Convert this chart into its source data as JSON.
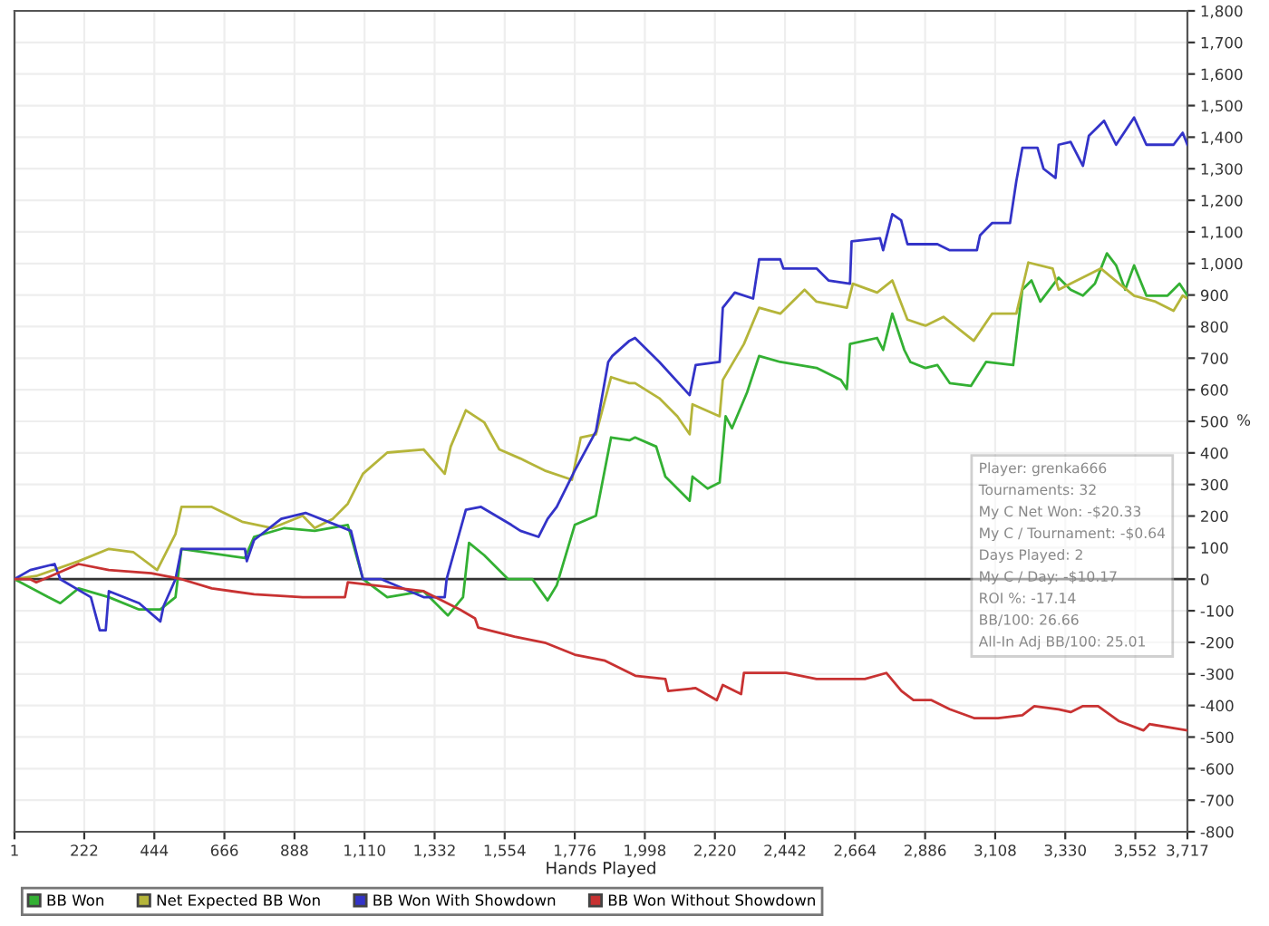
{
  "chart_data": {
    "type": "line",
    "xlabel": "Hands Played",
    "ylabel": "%",
    "xlim": [
      1,
      3717
    ],
    "ylim": [
      -800,
      1800
    ],
    "xticks": [
      1,
      222,
      444,
      666,
      888,
      {
        "value": 1110,
        "label": "1,110"
      },
      {
        "value": 1332,
        "label": "1,332"
      },
      {
        "value": 1554,
        "label": "1,554"
      },
      {
        "value": 1776,
        "label": "1,776"
      },
      {
        "value": 1998,
        "label": "1,998"
      },
      {
        "value": 2220,
        "label": "2,220"
      },
      {
        "value": 2442,
        "label": "2,442"
      },
      {
        "value": 2664,
        "label": "2,664"
      },
      {
        "value": 2886,
        "label": "2,886"
      },
      {
        "value": 3108,
        "label": "3,108"
      },
      {
        "value": 3330,
        "label": "3,330"
      },
      {
        "value": 3552,
        "label": "3,552"
      },
      {
        "value": 3717,
        "label": "3,717"
      }
    ],
    "yticks": [
      -800,
      -700,
      -600,
      -500,
      -400,
      -300,
      -200,
      -100,
      0,
      100,
      200,
      300,
      400,
      500,
      600,
      700,
      800,
      900,
      {
        "value": 1000,
        "label": "1,000"
      },
      {
        "value": 1100,
        "label": "1,100"
      },
      {
        "value": 1200,
        "label": "1,200"
      },
      {
        "value": 1300,
        "label": "1,300"
      },
      {
        "value": 1400,
        "label": "1,400"
      },
      {
        "value": 1500,
        "label": "1,500"
      },
      {
        "value": 1600,
        "label": "1,600"
      },
      {
        "value": 1700,
        "label": "1,700"
      },
      {
        "value": 1800,
        "label": "1,800"
      }
    ],
    "grid": true,
    "legend": "bottom",
    "marker": "none",
    "line_style": "solid",
    "ref_lines": [
      {
        "axis": "y",
        "value": 0,
        "color": "#333333"
      }
    ],
    "annotations": [
      "Player: grenka666",
      "Tournaments: 32",
      "My C Net Won: -$20.33",
      "My C / Tournament: -$0.64",
      "Days Played: 2",
      "My C / Day: -$10.17",
      "ROI %: -17.14",
      "BB/100: 26.66",
      "All-In Adj BB/100: 25.01"
    ],
    "series": [
      {
        "name": "BB Won",
        "color": "#33b033",
        "x": [
          1,
          108,
          146,
          204,
          300,
          396,
          463,
          511,
          530,
          731,
          760,
          856,
          952,
          1057,
          1105,
          1182,
          1297,
          1374,
          1422,
          1441,
          1489,
          1565,
          1642,
          1690,
          1719,
          1776,
          1843,
          1891,
          1949,
          1967,
          2034,
          2063,
          2140,
          2149,
          2197,
          2235,
          2254,
          2274,
          2322,
          2360,
          2427,
          2542,
          2619,
          2638,
          2648,
          2734,
          2753,
          2782,
          2820,
          2839,
          2887,
          2925,
          2964,
          3031,
          3079,
          3165,
          3194,
          3223,
          3251,
          3309,
          3347,
          3386,
          3424,
          3462,
          3491,
          3520,
          3548,
          3587,
          3654,
          3692,
          3717
        ],
        "values": [
          0,
          -57,
          -76,
          -29,
          -57,
          -96,
          -96,
          -57,
          96,
          67,
          134,
          162,
          153,
          172,
          0,
          -57,
          -38,
          -115,
          -57,
          115,
          76,
          0,
          0,
          -67,
          -19,
          172,
          201,
          449,
          440,
          449,
          420,
          325,
          248,
          325,
          287,
          306,
          516,
          478,
          592,
          707,
          688,
          669,
          631,
          602,
          745,
          764,
          726,
          841,
          726,
          688,
          669,
          678,
          621,
          612,
          688,
          678,
          917,
          946,
          879,
          955,
          917,
          898,
          936,
          1032,
          994,
          917,
          994,
          898,
          898,
          936,
          898
        ]
      },
      {
        "name": "Net Expected BB Won",
        "color": "#b5b53a",
        "x": [
          1,
          70,
          204,
          300,
          377,
          453,
          511,
          530,
          626,
          722,
          818,
          914,
          952,
          1009,
          1057,
          1105,
          1182,
          1297,
          1364,
          1383,
          1431,
          1489,
          1537,
          1604,
          1681,
          1767,
          1795,
          1843,
          1891,
          1949,
          1967,
          2044,
          2101,
          2140,
          2149,
          2235,
          2245,
          2312,
          2360,
          2427,
          2504,
          2542,
          2638,
          2657,
          2734,
          2782,
          2830,
          2887,
          2944,
          3040,
          3098,
          3175,
          3213,
          3290,
          3309,
          3347,
          3443,
          3501,
          3548,
          3616,
          3673,
          3702,
          3717
        ],
        "values": [
          0,
          10,
          57,
          96,
          86,
          29,
          143,
          229,
          229,
          182,
          162,
          201,
          162,
          191,
          239,
          334,
          401,
          411,
          334,
          420,
          535,
          497,
          411,
          382,
          344,
          315,
          449,
          459,
          640,
          621,
          621,
          573,
          516,
          459,
          554,
          516,
          631,
          745,
          860,
          841,
          917,
          879,
          860,
          936,
          908,
          946,
          822,
          803,
          831,
          755,
          841,
          841,
          1003,
          984,
          917,
          936,
          984,
          936,
          898,
          879,
          850,
          898,
          889
        ]
      },
      {
        "name": "BB Won With Showdown",
        "color": "#3333c8",
        "x": [
          1,
          51,
          128,
          146,
          243,
          271,
          290,
          300,
          396,
          463,
          473,
          511,
          530,
          731,
          737,
          760,
          846,
          923,
          1067,
          1105,
          1163,
          1297,
          1364,
          1370,
          1431,
          1479,
          1575,
          1604,
          1661,
          1690,
          1719,
          1776,
          1843,
          1882,
          1895,
          1949,
          1967,
          2044,
          2140,
          2159,
          2235,
          2245,
          2283,
          2341,
          2360,
          2427,
          2437,
          2542,
          2580,
          2648,
          2653,
          2743,
          2753,
          2782,
          2810,
          2830,
          2925,
          2964,
          3050,
          3060,
          3098,
          3155,
          3175,
          3194,
          3242,
          3261,
          3299,
          3309,
          3347,
          3386,
          3405,
          3453,
          3491,
          3548,
          3587,
          3673,
          3702,
          3717
        ],
        "values": [
          0,
          29,
          48,
          0,
          -57,
          -162,
          -162,
          -38,
          -76,
          -134,
          -86,
          0,
          96,
          96,
          57,
          124,
          191,
          210,
          153,
          0,
          0,
          -57,
          -57,
          0,
          220,
          229,
          172,
          153,
          134,
          191,
          229,
          344,
          468,
          688,
          707,
          755,
          764,
          688,
          583,
          678,
          688,
          860,
          908,
          889,
          1013,
          1013,
          984,
          984,
          946,
          936,
          1070,
          1080,
          1042,
          1156,
          1137,
          1061,
          1061,
          1042,
          1042,
          1089,
          1128,
          1128,
          1261,
          1366,
          1366,
          1300,
          1271,
          1376,
          1385,
          1309,
          1405,
          1452,
          1376,
          1462,
          1376,
          1376,
          1414,
          1376
        ]
      },
      {
        "name": "BB Won Without Showdown",
        "color": "#c83232",
        "x": [
          1,
          51,
          70,
          204,
          300,
          434,
          530,
          626,
          760,
          914,
          1048,
          1057,
          1297,
          1412,
          1460,
          1470,
          1585,
          1681,
          1776,
          1872,
          1968,
          2063,
          2072,
          2159,
          2226,
          2245,
          2303,
          2312,
          2446,
          2542,
          2695,
          2763,
          2811,
          2849,
          2906,
          2964,
          3041,
          3117,
          3194,
          3232,
          3309,
          3347,
          3386,
          3434,
          3501,
          3578,
          3597,
          3717
        ],
        "values": [
          0,
          0,
          -10,
          48,
          29,
          19,
          0,
          -29,
          -48,
          -57,
          -57,
          -10,
          -38,
          -96,
          -124,
          -153,
          -182,
          -201,
          -239,
          -258,
          -306,
          -316,
          -354,
          -345,
          -383,
          -335,
          -364,
          -297,
          -297,
          -316,
          -316,
          -297,
          -354,
          -383,
          -383,
          -412,
          -440,
          -440,
          -431,
          -402,
          -412,
          -421,
          -402,
          -402,
          -450,
          -479,
          -459,
          -479
        ]
      }
    ]
  }
}
